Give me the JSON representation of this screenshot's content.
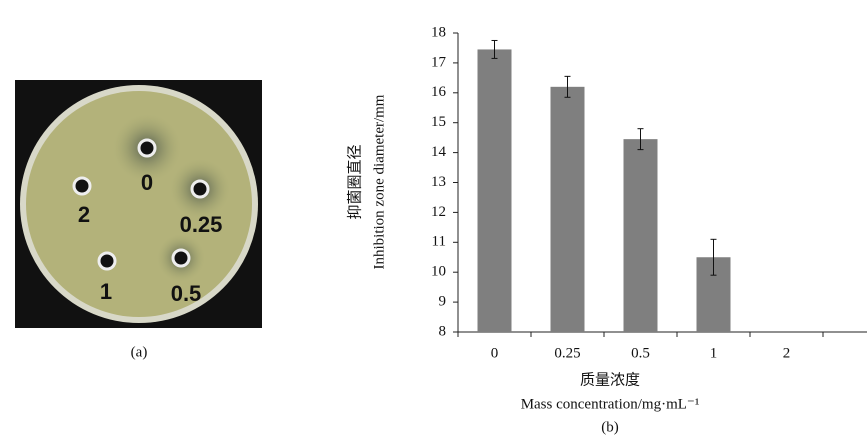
{
  "photo": {
    "labels": [
      "0",
      "0.25",
      "2",
      "1",
      "0.5"
    ],
    "caption": "(a)"
  },
  "chart_data": {
    "type": "bar",
    "caption": "(b)",
    "ylabel": [
      "抑菌圈直径",
      "Inhibition  zone  diameter/mm"
    ],
    "xlabel": [
      "质量浓度",
      "Mass  concentration/mg·mL⁻¹"
    ],
    "categories": [
      "0",
      "0.25",
      "0.5",
      "1",
      "2"
    ],
    "values": [
      17.45,
      16.2,
      14.45,
      10.5,
      null
    ],
    "errors": [
      0.3,
      0.35,
      0.35,
      0.6,
      null
    ],
    "color": "#7f7f7f",
    "ylim": [
      8,
      18
    ],
    "yticks": [
      8,
      9,
      10,
      11,
      12,
      13,
      14,
      15,
      16,
      17,
      18
    ]
  }
}
